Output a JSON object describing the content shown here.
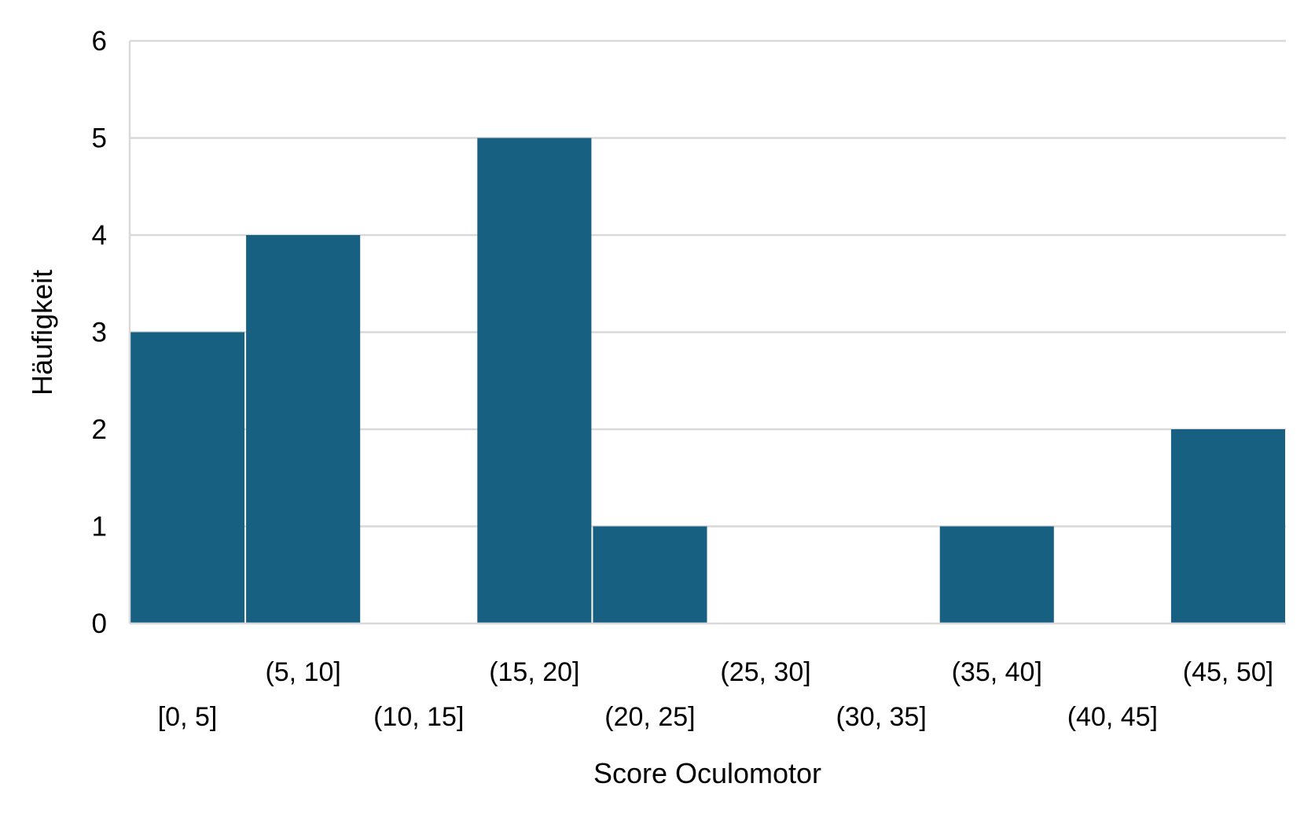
{
  "chart_data": {
    "type": "bar",
    "categories": [
      "[0, 5]",
      "(5, 10]",
      "(10, 15]",
      "(15, 20]",
      "(20, 25]",
      "(25, 30]",
      "(30, 35]",
      "(35, 40]",
      "(40, 45]",
      "(45, 50]"
    ],
    "values": [
      3,
      4,
      0,
      5,
      1,
      0,
      0,
      1,
      0,
      2
    ],
    "xlabel": "Score Oculomotor",
    "ylabel": "Häufigkeit",
    "ylim": [
      0,
      6
    ],
    "yticks": [
      "0",
      "1",
      "2",
      "3",
      "4",
      "5",
      "6"
    ],
    "grid": true,
    "legend": "none",
    "bar_color": "#186082",
    "grid_color": "#d9d9d9"
  }
}
